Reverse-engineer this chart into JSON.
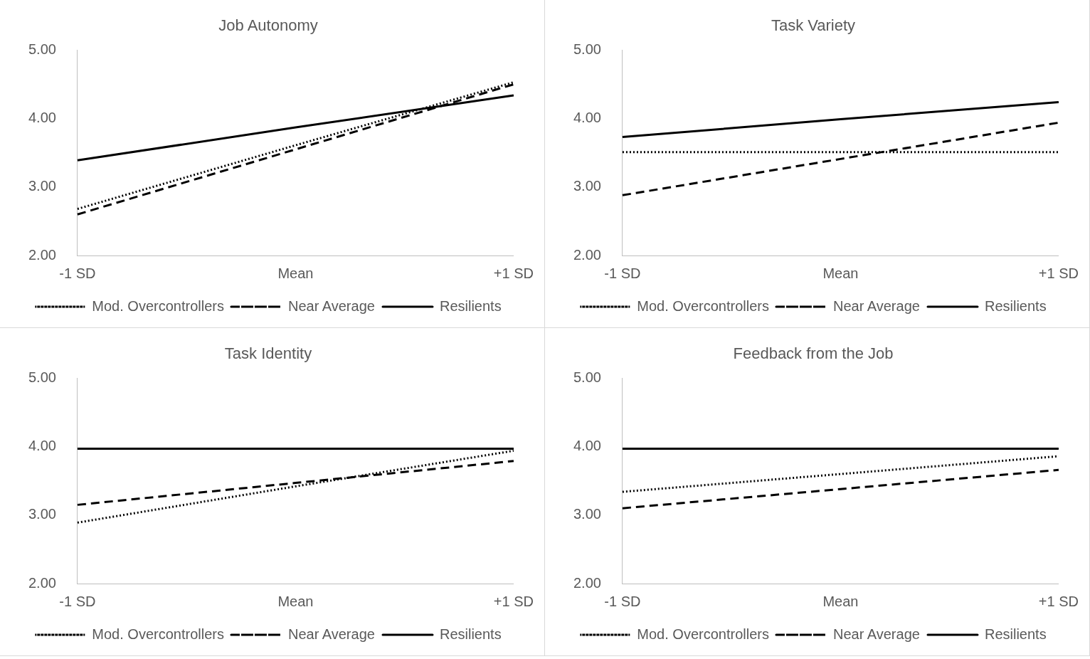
{
  "chart_data": [
    {
      "type": "line",
      "title": "Job Autonomy",
      "categories": [
        "-1 SD",
        "Mean",
        "+1 SD"
      ],
      "series": [
        {
          "name": "Mod. Overcontrollers",
          "color": "#000000",
          "line_style": "dotted",
          "values": [
            2.68,
            3.61,
            4.53
          ]
        },
        {
          "name": "Near Average",
          "color": "#000000",
          "line_style": "dashed",
          "values": [
            2.6,
            3.55,
            4.5
          ]
        },
        {
          "name": "Resilients",
          "color": "#000000",
          "line_style": "solid",
          "values": [
            3.39,
            3.87,
            4.34
          ]
        }
      ],
      "ylim": [
        2,
        5
      ],
      "yticks": [
        {
          "value": 2,
          "label": "2.00"
        },
        {
          "value": 3,
          "label": "3.00"
        },
        {
          "value": 4,
          "label": "4.00"
        },
        {
          "value": 5,
          "label": "5.00"
        }
      ],
      "legend": "bottom",
      "marker": "none",
      "grid": false
    },
    {
      "type": "line",
      "title": "Task Variety",
      "categories": [
        "-1 SD",
        "Mean",
        "+1 SD"
      ],
      "series": [
        {
          "name": "Mod. Overcontrollers",
          "color": "#000000",
          "line_style": "dotted",
          "values": [
            3.51,
            3.51,
            3.51
          ]
        },
        {
          "name": "Near Average",
          "color": "#000000",
          "line_style": "dashed",
          "values": [
            2.88,
            3.41,
            3.94
          ]
        },
        {
          "name": "Resilients",
          "color": "#000000",
          "line_style": "solid",
          "values": [
            3.73,
            3.99,
            4.24
          ]
        }
      ],
      "ylim": [
        2,
        5
      ],
      "yticks": [
        {
          "value": 2,
          "label": "2.00"
        },
        {
          "value": 3,
          "label": "3.00"
        },
        {
          "value": 4,
          "label": "4.00"
        },
        {
          "value": 5,
          "label": "5.00"
        }
      ],
      "legend": "bottom",
      "marker": "none",
      "grid": false
    },
    {
      "type": "line",
      "title": "Task Identity",
      "categories": [
        "-1 SD",
        "Mean",
        "+1 SD"
      ],
      "series": [
        {
          "name": "Mod. Overcontrollers",
          "color": "#000000",
          "line_style": "dotted",
          "values": [
            2.89,
            3.42,
            3.94
          ]
        },
        {
          "name": "Near Average",
          "color": "#000000",
          "line_style": "dashed",
          "values": [
            3.15,
            3.47,
            3.79
          ]
        },
        {
          "name": "Resilients",
          "color": "#000000",
          "line_style": "solid",
          "values": [
            3.97,
            3.97,
            3.97
          ]
        }
      ],
      "ylim": [
        2,
        5
      ],
      "yticks": [
        {
          "value": 2,
          "label": "2.00"
        },
        {
          "value": 3,
          "label": "3.00"
        },
        {
          "value": 4,
          "label": "4.00"
        },
        {
          "value": 5,
          "label": "5.00"
        }
      ],
      "legend": "bottom",
      "marker": "none",
      "grid": false
    },
    {
      "type": "line",
      "title": "Feedback from the Job",
      "categories": [
        "-1 SD",
        "Mean",
        "+1 SD"
      ],
      "series": [
        {
          "name": "Mod. Overcontrollers",
          "color": "#000000",
          "line_style": "dotted",
          "values": [
            3.34,
            3.6,
            3.86
          ]
        },
        {
          "name": "Near Average",
          "color": "#000000",
          "line_style": "dashed",
          "values": [
            3.1,
            3.38,
            3.66
          ]
        },
        {
          "name": "Resilients",
          "color": "#000000",
          "line_style": "solid",
          "values": [
            3.97,
            3.97,
            3.97
          ]
        }
      ],
      "ylim": [
        2,
        5
      ],
      "yticks": [
        {
          "value": 2,
          "label": "2.00"
        },
        {
          "value": 3,
          "label": "3.00"
        },
        {
          "value": 4,
          "label": "4.00"
        },
        {
          "value": 5,
          "label": "5.00"
        }
      ],
      "legend": "bottom",
      "marker": "none",
      "grid": false
    }
  ]
}
